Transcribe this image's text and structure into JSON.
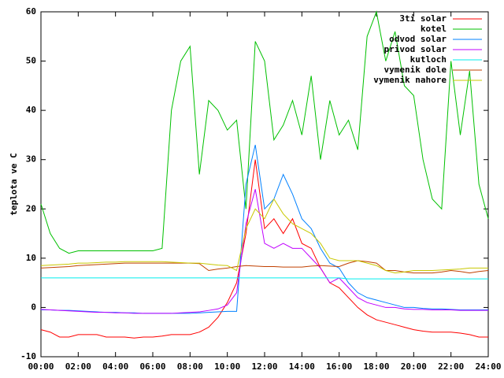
{
  "chart_data": {
    "type": "line",
    "y_label": "teplota ve C",
    "x": [
      0,
      0.5,
      1,
      1.5,
      2,
      2.5,
      3,
      3.5,
      4,
      4.5,
      5,
      5.5,
      6,
      6.5,
      7,
      7.5,
      8,
      8.5,
      9,
      9.5,
      10,
      10.5,
      11,
      11.5,
      12,
      12.5,
      13,
      13.5,
      14,
      14.5,
      15,
      15.5,
      16,
      16.5,
      17,
      17.5,
      18,
      18.5,
      19,
      19.5,
      20,
      20.5,
      21,
      21.5,
      22,
      22.5,
      23,
      23.5,
      24
    ],
    "series": [
      {
        "name": "3ti solar",
        "color": "#ff0000",
        "values": [
          -4.5,
          -5,
          -6,
          -6,
          -5.5,
          -5.5,
          -5.5,
          -6,
          -6,
          -6,
          -6.2,
          -6,
          -6,
          -5.8,
          -5.5,
          -5.5,
          -5.5,
          -5,
          -4,
          -2,
          1,
          5,
          15,
          30,
          16,
          18,
          15,
          18,
          13,
          12,
          8,
          5,
          4,
          2,
          0,
          -1.5,
          -2.5,
          -3,
          -3.5,
          -4,
          -4.5,
          -4.8,
          -5,
          -5,
          -5,
          -5.2,
          -5.5,
          -6,
          -6
        ]
      },
      {
        "name": "kotel",
        "color": "#00c000",
        "values": [
          21,
          15,
          12,
          11,
          11.5,
          11.5,
          11.5,
          11.5,
          11.5,
          11.5,
          11.5,
          11.5,
          11.5,
          12,
          40,
          50,
          53,
          27,
          42,
          40,
          36,
          38,
          20,
          54,
          50,
          34,
          37,
          42,
          35,
          47,
          30,
          42,
          35,
          38,
          32,
          55,
          60,
          50,
          56,
          45,
          43,
          30,
          22,
          20,
          50,
          35,
          48,
          25,
          18
        ]
      },
      {
        "name": "odvod solar",
        "color": "#0080ff",
        "values": [
          -0.5,
          -0.5,
          -0.6,
          -0.6,
          -0.7,
          -0.8,
          -0.9,
          -1,
          -1,
          -1.1,
          -1.1,
          -1.2,
          -1.2,
          -1.2,
          -1.2,
          -1.2,
          -1.2,
          -1.1,
          -1,
          -0.9,
          -0.8,
          -0.8,
          25,
          33,
          20,
          22,
          27,
          23,
          18,
          16,
          12,
          9,
          8,
          5,
          3,
          2,
          1.5,
          1,
          0.5,
          0,
          0,
          -0.2,
          -0.3,
          -0.3,
          -0.4,
          -0.5,
          -0.5,
          -0.5,
          -0.5
        ]
      },
      {
        "name": "privod solar",
        "color": "#c000ff",
        "values": [
          -0.4,
          -0.5,
          -0.6,
          -0.7,
          -0.8,
          -0.9,
          -1,
          -1,
          -1.1,
          -1.1,
          -1.2,
          -1.2,
          -1.2,
          -1.2,
          -1.2,
          -1.1,
          -1,
          -0.9,
          -0.6,
          -0.3,
          0.5,
          3,
          17,
          24,
          13,
          12,
          13,
          12,
          12,
          10,
          8,
          5,
          6,
          4,
          2,
          1,
          0.5,
          0,
          0,
          -0.3,
          -0.4,
          -0.4,
          -0.5,
          -0.5,
          -0.5,
          -0.6,
          -0.6,
          -0.6,
          -0.6
        ]
      },
      {
        "name": "kutloch",
        "color": "#00eeee",
        "values": [
          6,
          6,
          6,
          6,
          6,
          6,
          6,
          6,
          6,
          6,
          6,
          6,
          6,
          6,
          6,
          6,
          6,
          6,
          6,
          6,
          6,
          6,
          6,
          6,
          6,
          6,
          6,
          6,
          6,
          6,
          6,
          6,
          6,
          5.8,
          5.8,
          5.8,
          5.8,
          5.8,
          5.8,
          5.8,
          5.8,
          5.8,
          5.8,
          5.8,
          5.8,
          5.8,
          5.8,
          5.8,
          5.8
        ]
      },
      {
        "name": "vymenik dole",
        "color": "#c04000",
        "values": [
          8,
          8.1,
          8.2,
          8.3,
          8.5,
          8.6,
          8.7,
          8.8,
          8.9,
          9,
          9,
          9,
          9,
          9,
          9,
          9,
          9,
          8.9,
          7.5,
          7.8,
          8,
          8.3,
          8.5,
          8.4,
          8.3,
          8.3,
          8.2,
          8.2,
          8.2,
          8.4,
          8.5,
          8.4,
          8.3,
          9,
          9.5,
          9.3,
          9,
          7.5,
          7.5,
          7.2,
          7,
          7,
          7,
          7.2,
          7.5,
          7.3,
          7,
          7.3,
          7.5
        ]
      },
      {
        "name": "vymenik nahore",
        "color": "#c8c800",
        "values": [
          8.5,
          8.6,
          8.7,
          8.8,
          9,
          9,
          9.1,
          9.2,
          9.2,
          9.3,
          9.3,
          9.3,
          9.3,
          9.3,
          9.2,
          9.1,
          9,
          9,
          8.8,
          8.6,
          8.5,
          7.5,
          16,
          20,
          18,
          22,
          19,
          17,
          16,
          15,
          13,
          10,
          9.5,
          9.5,
          9.5,
          9,
          8.5,
          7.5,
          7,
          7.2,
          7.5,
          7.5,
          7.5,
          7.6,
          7.7,
          7.8,
          8,
          8,
          8
        ]
      }
    ],
    "xlim": [
      0,
      24
    ],
    "xticks": [
      {
        "value": 0,
        "label": "00:00"
      },
      {
        "value": 2,
        "label": "02:00"
      },
      {
        "value": 4,
        "label": "04:00"
      },
      {
        "value": 6,
        "label": "06:00"
      },
      {
        "value": 8,
        "label": "08:00"
      },
      {
        "value": 10,
        "label": "10:00"
      },
      {
        "value": 12,
        "label": "12:00"
      },
      {
        "value": 14,
        "label": "14:00"
      },
      {
        "value": 16,
        "label": "16:00"
      },
      {
        "value": 18,
        "label": "18:00"
      },
      {
        "value": 20,
        "label": "20:00"
      },
      {
        "value": 22,
        "label": "22:00"
      },
      {
        "value": 24,
        "label": "24:00"
      }
    ],
    "ylim": [
      -10,
      60
    ],
    "yticks": [
      -10,
      0,
      10,
      20,
      30,
      40,
      50,
      60
    ],
    "legend": "top right"
  }
}
